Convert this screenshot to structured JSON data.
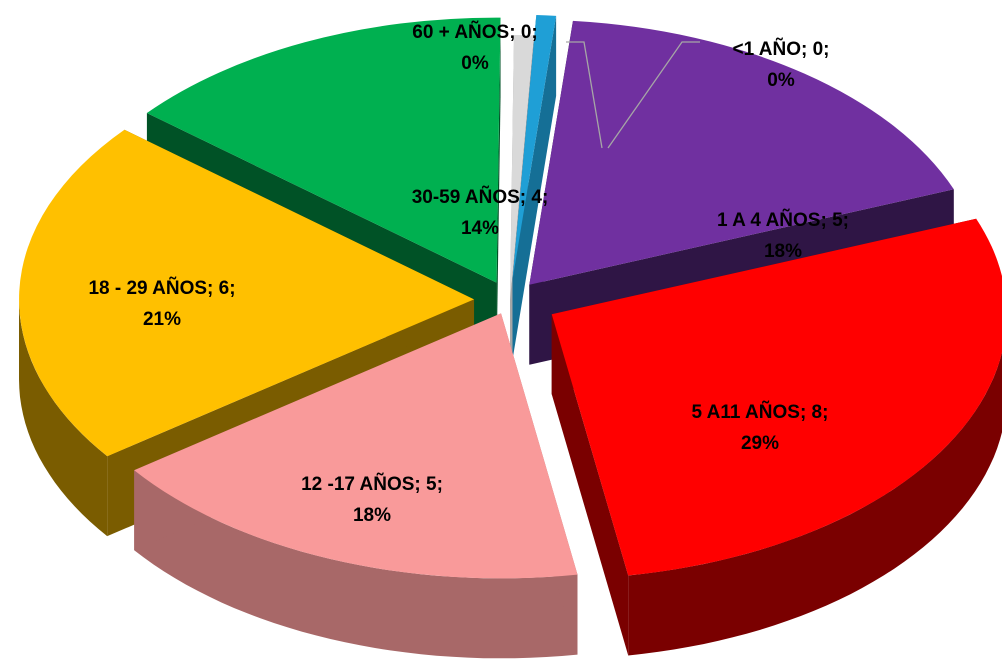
{
  "chart_data": {
    "type": "pie",
    "style": "3d-exploded",
    "title": "",
    "slices": [
      {
        "label": "<1 AÑO",
        "value": 0,
        "percent": "0%",
        "color": "#1f9fd6",
        "side": "#156f96"
      },
      {
        "label": "1 A 4 AÑOS",
        "value": 5,
        "percent": "18%",
        "color": "#7030a0",
        "side": "#2f1545"
      },
      {
        "label": "5 A11 AÑOS",
        "value": 8,
        "percent": "29%",
        "color": "#ff0000",
        "side": "#7a0000"
      },
      {
        "label": "12 -17 AÑOS",
        "value": 5,
        "percent": "18%",
        "color": "#f99a9a",
        "side": "#a86868"
      },
      {
        "label": "18 - 29 AÑOS",
        "value": 6,
        "percent": "21%",
        "color": "#ffc000",
        "side": "#7a5c00"
      },
      {
        "label": "30-59 AÑOS",
        "value": 4,
        "percent": "14%",
        "color": "#00b050",
        "side": "#005226"
      },
      {
        "label": "60 + AÑOS",
        "value": 0,
        "percent": "0%",
        "color": "#d9d9d9",
        "side": "#a6a6a6"
      }
    ]
  }
}
